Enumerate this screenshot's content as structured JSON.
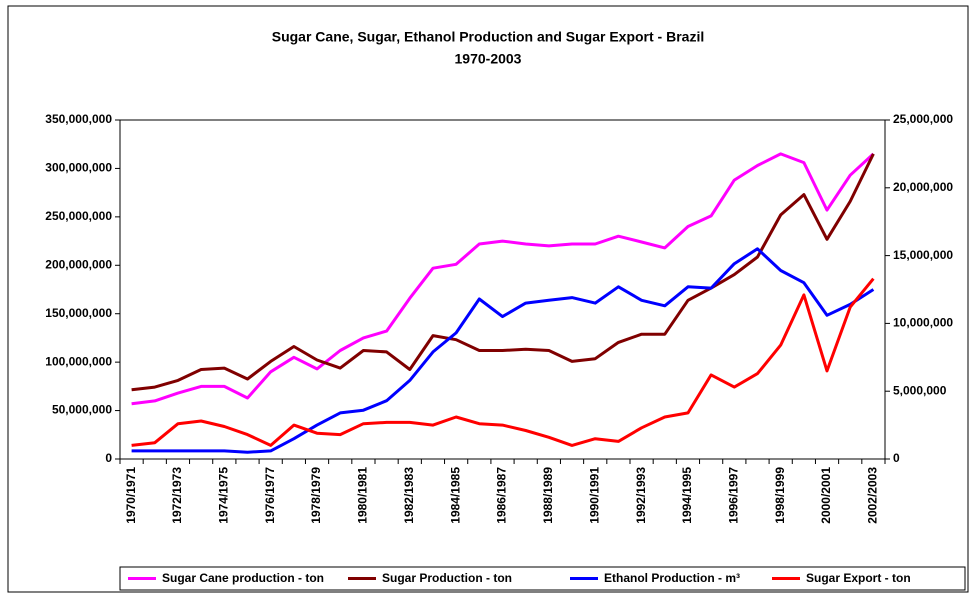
{
  "chart_data": {
    "type": "line",
    "title": "Sugar Cane, Sugar, Ethanol Production and Sugar Export - Brazil",
    "subtitle": "1970-2003",
    "categories": [
      "1970/1971",
      null,
      "1972/1973",
      null,
      "1974/1975",
      null,
      "1976/1977",
      null,
      "1978/1979",
      null,
      "1980/1981",
      null,
      "1982/1983",
      null,
      "1984/1985",
      null,
      "1986/1987",
      null,
      "1988/1989",
      null,
      "1990/1991",
      null,
      "1992/1993",
      null,
      "1994/1995",
      null,
      "1996/1997",
      null,
      "1998/1999",
      null,
      "2000/2001",
      null,
      "2002/2003"
    ],
    "series": [
      {
        "name": "Sugar Cane production - ton",
        "color": "#ff00ff",
        "axis": "y",
        "values": [
          57000000,
          60000000,
          68000000,
          75000000,
          75000000,
          63000000,
          90000000,
          105000000,
          93000000,
          112000000,
          125000000,
          132000000,
          166000000,
          197000000,
          201000000,
          222000000,
          225000000,
          222000000,
          220000000,
          222000000,
          222000000,
          230000000,
          224000000,
          218000000,
          240000000,
          251000000,
          288000000,
          303000000,
          315000000,
          306000000,
          257000000,
          293000000,
          315000000
        ]
      },
      {
        "name": "Sugar Production - ton",
        "color": "#800000",
        "axis": "y2",
        "values": [
          5100000,
          5300000,
          5800000,
          6600000,
          6700000,
          5900000,
          7200000,
          8300000,
          7300000,
          6700000,
          8000000,
          7900000,
          6600000,
          9100000,
          8800000,
          8000000,
          8000000,
          8100000,
          8000000,
          7200000,
          7400000,
          8600000,
          9200000,
          9200000,
          11700000,
          12600000,
          13600000,
          14900000,
          18000000,
          19500000,
          16200000,
          19000000,
          22500000
        ]
      },
      {
        "name": "Ethanol Production - m³",
        "color": "#0000ff",
        "axis": "y2",
        "values": [
          600000,
          600000,
          600000,
          600000,
          600000,
          500000,
          600000,
          1500000,
          2500000,
          3400000,
          3600000,
          4300000,
          5800000,
          7900000,
          9300000,
          11800000,
          10500000,
          11500000,
          11700000,
          11900000,
          11500000,
          12700000,
          11700000,
          11300000,
          12700000,
          12600000,
          14400000,
          15500000,
          13900000,
          13000000,
          10600000,
          11400000,
          12500000
        ]
      },
      {
        "name": "Sugar Export - ton",
        "color": "#ff0000",
        "axis": "y2",
        "values": [
          1000000,
          1200000,
          2600000,
          2800000,
          2400000,
          1800000,
          1000000,
          2500000,
          1900000,
          1800000,
          2600000,
          2700000,
          2700000,
          2500000,
          3100000,
          2600000,
          2500000,
          2100000,
          1600000,
          1000000,
          1500000,
          1300000,
          2300000,
          3100000,
          3400000,
          6200000,
          5300000,
          6300000,
          8400000,
          12100000,
          6500000,
          11200000,
          13300000
        ]
      }
    ],
    "ylim": [
      0,
      350000000
    ],
    "yticks": [
      0,
      {
        "value": 50000000,
        "label": "50,000,000"
      },
      {
        "value": 100000000,
        "label": "100,000,000"
      },
      {
        "value": 150000000,
        "label": "150,000,000"
      },
      {
        "value": 200000000,
        "label": "200,000,000"
      },
      {
        "value": 250000000,
        "label": "250,000,000"
      },
      {
        "value": 300000000,
        "label": "300,000,000"
      },
      {
        "value": 350000000,
        "label": "350,000,000"
      }
    ],
    "y2lim": [
      0,
      25000000
    ],
    "y2ticks": [
      0,
      {
        "value": 5000000,
        "label": "5,000,000"
      },
      {
        "value": 10000000,
        "label": "10,000,000"
      },
      {
        "value": 15000000,
        "label": "15,000,000"
      },
      {
        "value": 20000000,
        "label": "20,000,000"
      },
      {
        "value": 25000000,
        "label": "25,000,000"
      }
    ],
    "grid": false,
    "legend": "bottom"
  }
}
